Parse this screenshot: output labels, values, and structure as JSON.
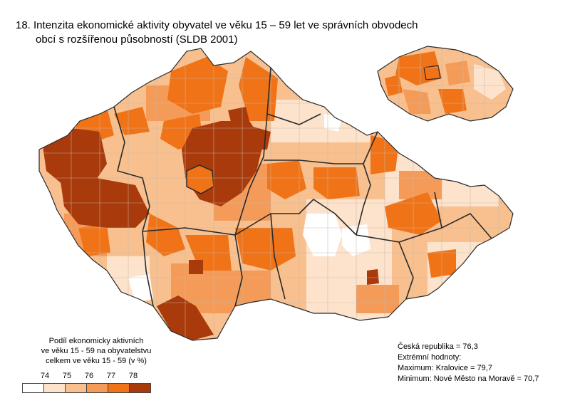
{
  "title": {
    "line1": "18. Intenzita ekonomické aktivity obyvatel ve věku 15 – 59 let ve správních obvodech",
    "line2": "obcí s rozšířenou působností (SLDB 2001)"
  },
  "legend": {
    "title_lines": [
      "Podíl ekonomicky aktivních",
      "ve věku 15 - 59 na obyvatelstvu",
      "celkem ve věku 15 - 59 (v %)"
    ],
    "ticks": [
      "74",
      "75",
      "76",
      "77",
      "78"
    ],
    "colors": [
      "#ffffff",
      "#fde3cc",
      "#f8c08f",
      "#f49b5a",
      "#f07318",
      "#a83a0c"
    ]
  },
  "stats": {
    "country": "Česká republika = 76,3",
    "extremes_label": "Extrémní hodnoty:",
    "maximum": "Maximum: Kralovice = 79,7",
    "minimum": "Minimum:  Nové Město na Moravě = 70,7"
  },
  "colors": {
    "border": "#2a2a2a",
    "district_line": "#b0a090"
  }
}
